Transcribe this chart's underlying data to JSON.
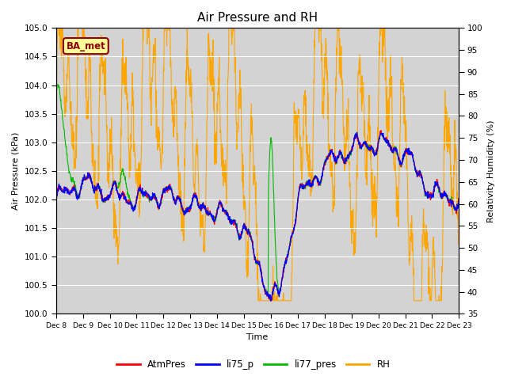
{
  "title": "Air Pressure and RH",
  "ylabel_left": "Air Pressure (kPa)",
  "ylabel_right": "Relativity Humidity (%)",
  "xlabel": "Time",
  "ylim_left": [
    100.0,
    105.0
  ],
  "ylim_right": [
    35,
    100
  ],
  "yticks_left": [
    100.0,
    100.5,
    101.0,
    101.5,
    102.0,
    102.5,
    103.0,
    103.5,
    104.0,
    104.5,
    105.0
  ],
  "yticks_right": [
    35,
    40,
    45,
    50,
    55,
    60,
    65,
    70,
    75,
    80,
    85,
    90,
    95,
    100
  ],
  "xtick_labels": [
    "Dec 8",
    "Dec 9",
    "Dec 10",
    "Dec 11",
    "Dec 12",
    "Dec 13",
    "Dec 14",
    "Dec 15",
    "Dec 16",
    "Dec 17",
    "Dec 18",
    "Dec 19",
    "Dec 20",
    "Dec 21",
    "Dec 22",
    "Dec 23"
  ],
  "legend_labels": [
    "AtmPres",
    "li75_p",
    "li77_pres",
    "RH"
  ],
  "legend_colors": [
    "#ff0000",
    "#0000ff",
    "#00bb00",
    "#ffa500"
  ],
  "atm_color": "#ff0000",
  "li75_color": "#0000ff",
  "li77_color": "#00bb00",
  "rh_color": "#ffa500",
  "bg_color": "#d3d3d3",
  "annotation_text": "BA_met",
  "annotation_bg": "#ffff99",
  "annotation_border": "#8b0000",
  "grid_color": "#ffffff",
  "title_fontsize": 11
}
